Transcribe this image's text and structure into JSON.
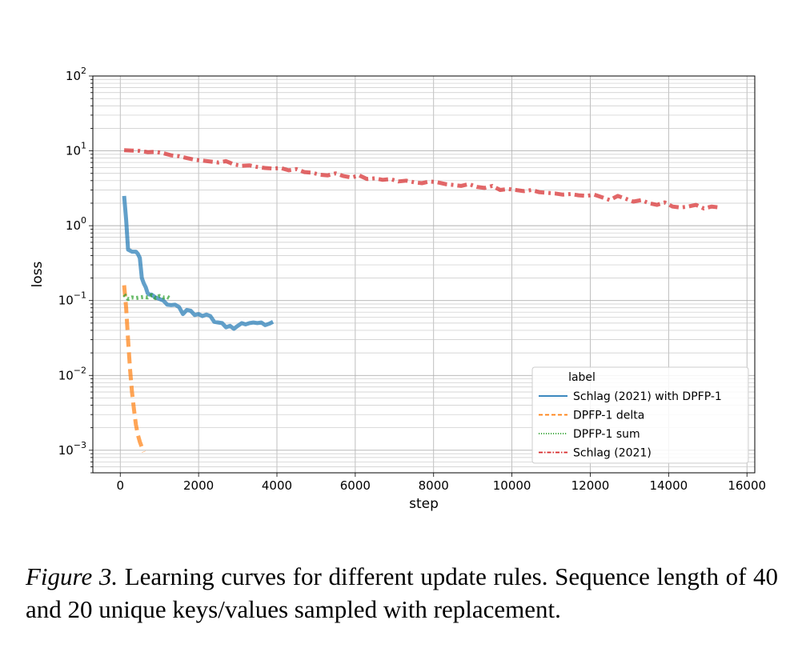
{
  "caption": {
    "label": "Figure 3.",
    "text": "Learning curves for different update rules. Sequence length of 40 and 20 unique keys/values sampled with replacement."
  },
  "chart_data": {
    "type": "line",
    "xlabel": "step",
    "ylabel": "loss",
    "xscale": "linear",
    "yscale": "log",
    "xlim": [
      -700,
      16200
    ],
    "ylim": [
      0.0005,
      100
    ],
    "xticks": [
      0,
      2000,
      4000,
      6000,
      8000,
      10000,
      12000,
      14000,
      16000
    ],
    "yticks": [
      {
        "value": 0.001,
        "base": "10",
        "exp": "−3"
      },
      {
        "value": 0.01,
        "base": "10",
        "exp": "−2"
      },
      {
        "value": 0.1,
        "base": "10",
        "exp": "−1"
      },
      {
        "value": 1,
        "base": "10",
        "exp": "0"
      },
      {
        "value": 10,
        "base": "10",
        "exp": "1"
      },
      {
        "value": 100,
        "base": "10",
        "exp": "2"
      }
    ],
    "grid": true,
    "legend": {
      "title": "label",
      "position": "lower right"
    },
    "series": [
      {
        "name": "Schlag (2021) with DPFP-1",
        "color": "#1f77b4",
        "linestyle": "solid",
        "x": [
          100,
          150,
          200,
          300,
          400,
          450,
          500,
          550,
          600,
          650,
          700,
          750,
          800,
          900,
          1000,
          1100,
          1200,
          1300,
          1400,
          1500,
          1600,
          1700,
          1800,
          1900,
          2000,
          2100,
          2200,
          2300,
          2400,
          2500,
          2600,
          2700,
          2800,
          2900,
          3000,
          3100,
          3200,
          3300,
          3400,
          3500,
          3600,
          3700,
          3800,
          3900
        ],
        "y": [
          2.5,
          1.2,
          0.48,
          0.45,
          0.45,
          0.42,
          0.37,
          0.2,
          0.17,
          0.15,
          0.125,
          0.12,
          0.12,
          0.11,
          0.105,
          0.1,
          0.088,
          0.087,
          0.088,
          0.082,
          0.066,
          0.075,
          0.073,
          0.064,
          0.066,
          0.062,
          0.065,
          0.062,
          0.052,
          0.051,
          0.05,
          0.044,
          0.046,
          0.042,
          0.046,
          0.05,
          0.048,
          0.05,
          0.051,
          0.05,
          0.051,
          0.047,
          0.049,
          0.052
        ]
      },
      {
        "name": "DPFP-1 delta",
        "color": "#ff7f0e",
        "linestyle": "dashed",
        "x": [
          100,
          150,
          200,
          250,
          300,
          350,
          400,
          450,
          500,
          550,
          600
        ],
        "y": [
          0.16,
          0.08,
          0.03,
          0.012,
          0.006,
          0.0035,
          0.0022,
          0.0016,
          0.0013,
          0.0011,
          0.00095
        ]
      },
      {
        "name": "DPFP-1 sum",
        "color": "#2ca02c",
        "linestyle": "dotted",
        "x": [
          100,
          200,
          300,
          400,
          500,
          600,
          700,
          800,
          900,
          1000,
          1100,
          1200,
          1300
        ],
        "y": [
          0.12,
          0.105,
          0.11,
          0.108,
          0.11,
          0.112,
          0.11,
          0.118,
          0.108,
          0.115,
          0.11,
          0.112,
          0.105
        ]
      },
      {
        "name": "Schlag (2021)",
        "color": "#d62728",
        "linestyle": "dashdot",
        "x": [
          100,
          300,
          500,
          700,
          900,
          1100,
          1300,
          1500,
          1700,
          1900,
          2100,
          2300,
          2500,
          2700,
          2900,
          3100,
          3300,
          3500,
          3700,
          3900,
          4100,
          4300,
          4500,
          4700,
          4900,
          5100,
          5300,
          5500,
          5700,
          5900,
          6100,
          6300,
          6500,
          6700,
          6900,
          7100,
          7300,
          7500,
          7700,
          7900,
          8100,
          8300,
          8500,
          8700,
          8900,
          9100,
          9300,
          9500,
          9700,
          9900,
          10100,
          10300,
          10500,
          10700,
          10900,
          11100,
          11300,
          11500,
          11700,
          11900,
          12100,
          12300,
          12500,
          12700,
          12900,
          13100,
          13300,
          13500,
          13700,
          13900,
          14100,
          14300,
          14500,
          14700,
          14900,
          15100,
          15300
        ],
        "y": [
          10.2,
          10.1,
          10.0,
          9.6,
          9.7,
          9.3,
          8.7,
          8.5,
          8.0,
          7.6,
          7.4,
          7.2,
          7.0,
          7.3,
          6.6,
          6.3,
          6.4,
          6.1,
          5.9,
          5.8,
          5.9,
          5.5,
          5.7,
          5.2,
          5.1,
          4.8,
          4.7,
          5.0,
          4.6,
          4.4,
          4.7,
          4.2,
          4.3,
          4.1,
          4.2,
          3.9,
          4.0,
          3.8,
          3.7,
          3.9,
          3.8,
          3.6,
          3.5,
          3.4,
          3.6,
          3.3,
          3.2,
          3.4,
          3.0,
          3.1,
          3.0,
          2.9,
          3.0,
          2.8,
          2.75,
          2.7,
          2.6,
          2.65,
          2.55,
          2.5,
          2.6,
          2.4,
          2.2,
          2.5,
          2.3,
          2.1,
          2.2,
          2.0,
          1.9,
          2.05,
          1.8,
          1.75,
          1.8,
          1.9,
          1.7,
          1.8,
          1.75
        ]
      }
    ]
  }
}
